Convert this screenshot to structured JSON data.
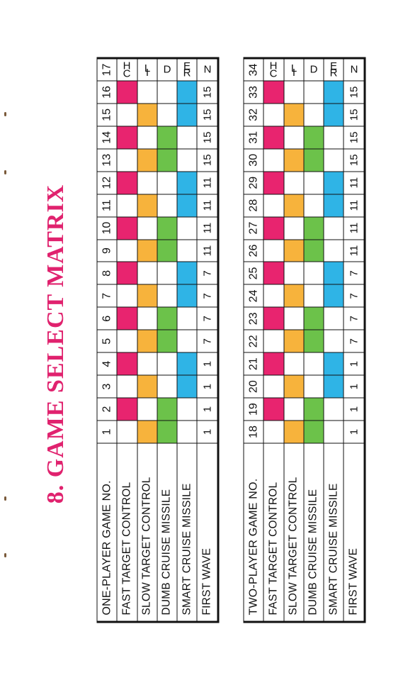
{
  "heading": "8. GAME SELECT MATRIX",
  "tables": [
    {
      "id": "one-player",
      "row_labels": [
        "ONE-PLAYER GAME NO.",
        "FAST TARGET CONTROL",
        "SLOW TARGET CONTROL",
        "DUMB CRUISE MISSILE",
        "SMART CRUISE MISSILE",
        "FIRST WAVE"
      ],
      "game_numbers": [
        "1",
        "2",
        "3",
        "4",
        "5",
        "6",
        "7",
        "8",
        "9",
        "10",
        "11",
        "12",
        "13",
        "14",
        "15",
        "16"
      ],
      "fast_target": [
        false,
        true,
        false,
        true,
        false,
        true,
        false,
        true,
        false,
        true,
        false,
        true,
        false,
        true,
        false,
        true
      ],
      "slow_target": [
        true,
        false,
        true,
        false,
        true,
        false,
        true,
        false,
        true,
        false,
        true,
        false,
        true,
        false,
        true,
        false
      ],
      "dumb_missile": [
        true,
        true,
        false,
        false,
        true,
        true,
        false,
        false,
        true,
        true,
        false,
        false,
        true,
        true,
        false,
        false
      ],
      "smart_missile": [
        false,
        false,
        true,
        true,
        false,
        false,
        true,
        true,
        false,
        false,
        true,
        true,
        false,
        false,
        true,
        true
      ],
      "first_wave": [
        "1",
        "1",
        "1",
        "1",
        "7",
        "7",
        "7",
        "7",
        "11",
        "11",
        "11",
        "11",
        "15",
        "15",
        "15",
        "15"
      ],
      "children_number": "17",
      "children_letters": [
        "C",
        "H",
        "I",
        "L",
        "D",
        "R",
        "E",
        "N"
      ]
    },
    {
      "id": "two-player",
      "row_labels": [
        "TWO-PLAYER GAME NO.",
        "FAST TARGET CONTROL",
        "SLOW TARGET CONTROL",
        "DUMB CRUISE MISSILE",
        "SMART CRUISE MISSILE",
        "FIRST WAVE"
      ],
      "game_numbers": [
        "18",
        "19",
        "20",
        "21",
        "22",
        "23",
        "24",
        "25",
        "26",
        "27",
        "28",
        "29",
        "30",
        "31",
        "32",
        "33"
      ],
      "fast_target": [
        false,
        true,
        false,
        true,
        false,
        true,
        false,
        true,
        false,
        true,
        false,
        true,
        false,
        true,
        false,
        true
      ],
      "slow_target": [
        true,
        false,
        true,
        false,
        true,
        false,
        true,
        false,
        true,
        false,
        true,
        false,
        true,
        false,
        true,
        false
      ],
      "dumb_missile": [
        true,
        true,
        false,
        false,
        true,
        true,
        false,
        false,
        true,
        true,
        false,
        false,
        true,
        true,
        false,
        false
      ],
      "smart_missile": [
        false,
        false,
        true,
        true,
        false,
        false,
        true,
        true,
        false,
        false,
        true,
        true,
        false,
        false,
        true,
        true
      ],
      "first_wave": [
        "1",
        "1",
        "1",
        "1",
        "7",
        "7",
        "7",
        "7",
        "11",
        "11",
        "11",
        "11",
        "15",
        "15",
        "15",
        "15"
      ],
      "children_number": "34",
      "children_letters": [
        "C",
        "H",
        "I",
        "L",
        "D",
        "R",
        "E",
        "N"
      ]
    }
  ],
  "colors": {
    "heading": "#e0226e",
    "fast_target": "#e8246f",
    "slow_target": "#f7b33c",
    "dumb_missile": "#6cc24a",
    "smart_missile": "#2fb4e6"
  }
}
